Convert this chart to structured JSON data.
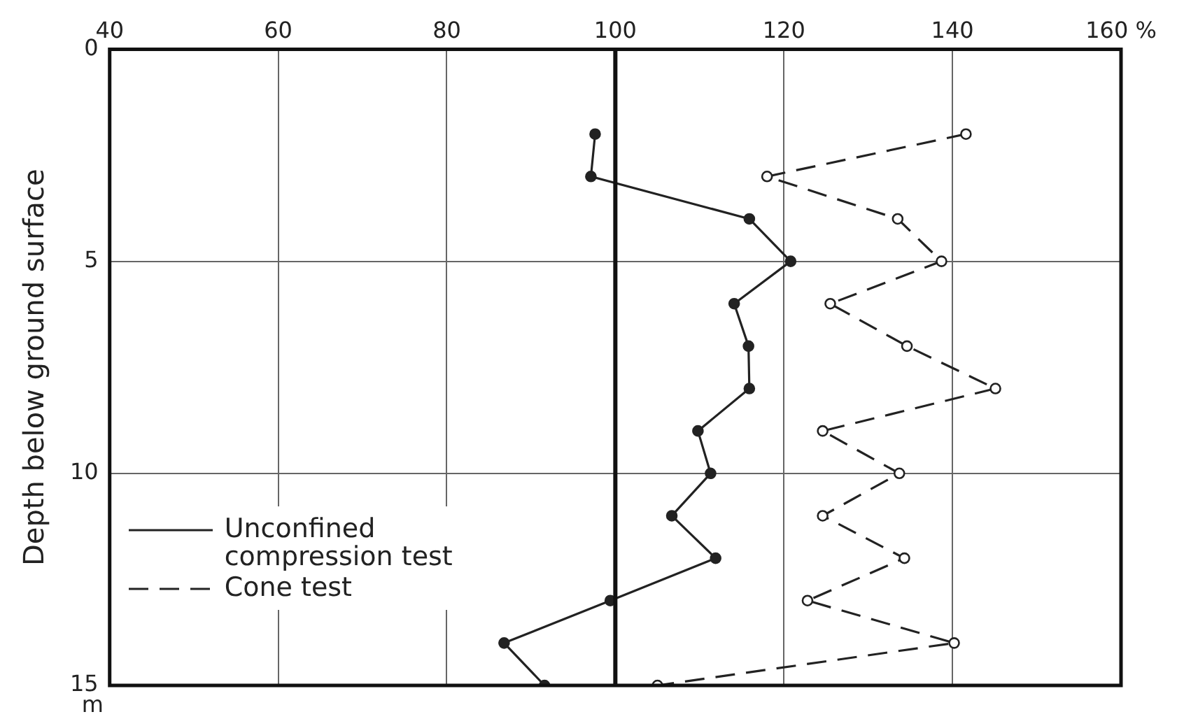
{
  "chart_data": {
    "type": "line",
    "ylabel": "Depth below ground surface",
    "annotations": [
      "m"
    ],
    "xlim": [
      40,
      160
    ],
    "xticks": [
      40,
      60,
      80,
      100,
      120,
      140,
      {
        "value": 160,
        "label": "160 %"
      }
    ],
    "ylim": [
      15,
      0
    ],
    "yticks": [
      0,
      5,
      10,
      15
    ],
    "grid": true,
    "legend": "bottom left",
    "marker": "circle",
    "ref_lines": [
      {
        "axis": "x",
        "value": 100,
        "color": "#111111"
      }
    ],
    "series": [
      {
        "name": "Unconfined compression test",
        "color": "#222222",
        "line_style": "solid",
        "x": [
          97.6,
          97.1,
          115.9,
          120.8,
          114.1,
          115.8,
          115.9,
          109.8,
          111.3,
          106.7,
          111.9,
          99.4,
          86.8,
          91.6
        ],
        "values": [
          2,
          3,
          4,
          5,
          6,
          7,
          8,
          9,
          10,
          11,
          12,
          13,
          14,
          15
        ]
      },
      {
        "name": "Cone test",
        "color": "#222222",
        "line_style": "dashed",
        "x": [
          141.6,
          118.0,
          133.5,
          138.7,
          125.5,
          134.6,
          145.1,
          124.6,
          133.7,
          124.6,
          134.3,
          122.8,
          140.2,
          105.0
        ],
        "values": [
          2,
          3,
          4,
          5,
          6,
          7,
          8,
          9,
          10,
          11,
          12,
          13,
          14,
          15
        ]
      }
    ]
  }
}
